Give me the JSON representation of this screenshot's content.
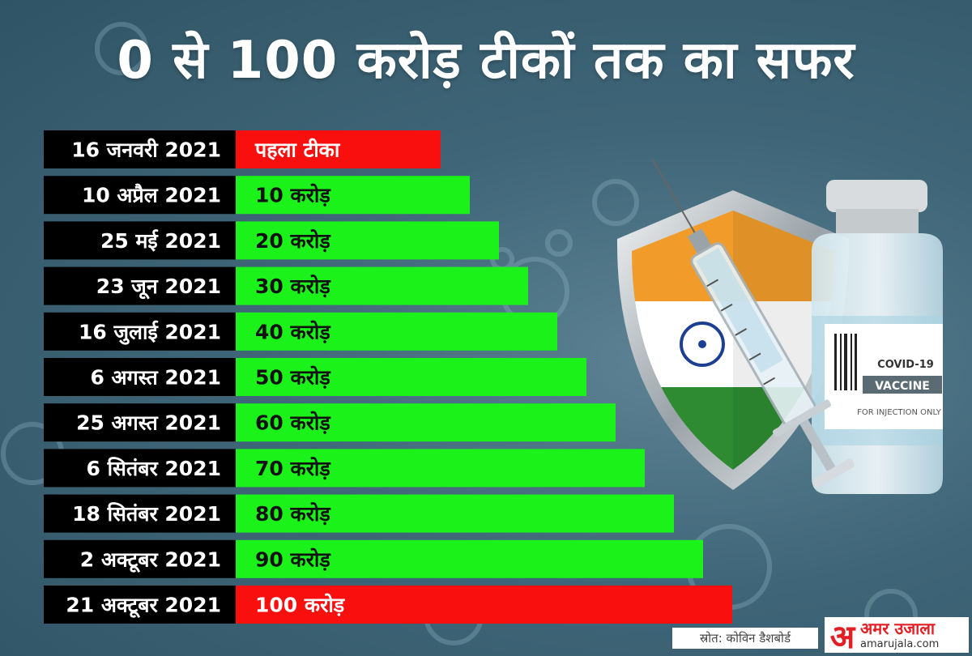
{
  "title": "0 से 100 करोड़ टीकों तक का सफर",
  "source": "स्रोत: कोविन डैशबोर्ड",
  "logo": {
    "mark": "अ",
    "name": "अमर उजाला",
    "site": "amarujala.com"
  },
  "illustration": {
    "label_line1": "COVID-19",
    "label_line2": "VACCINE",
    "label_line3": "FOR INJECTION ONLY"
  },
  "colors": {
    "green": "#1af21a",
    "red": "#fa0f0f",
    "date_bg": "#000000"
  },
  "chart_data": {
    "type": "bar",
    "orientation": "horizontal",
    "categories": [
      "16 जनवरी 2021",
      "10 अप्रैल 2021",
      "25 मई 2021",
      "23 जून 2021",
      "16 जुलाई 2021",
      "6 अगस्त 2021",
      "25 अगस्त 2021",
      "6 सितंबर 2021",
      "18 सितंबर 2021",
      "2 अक्टूबर 2021",
      "21 अक्टूबर 2021"
    ],
    "labels": [
      "पहला टीका",
      "10 करोड़",
      "20 करोड़",
      "30 करोड़",
      "40 करोड़",
      "50 करोड़",
      "60 करोड़",
      "70 करोड़",
      "80 करोड़",
      "90 करोड़",
      "100 करोड़"
    ],
    "values": [
      0,
      10,
      20,
      30,
      40,
      50,
      60,
      70,
      80,
      90,
      100
    ],
    "highlight": [
      true,
      false,
      false,
      false,
      false,
      false,
      false,
      false,
      false,
      false,
      true
    ],
    "title": "0 से 100 करोड़ टीकों तक का सफर",
    "xlabel": "",
    "ylabel": ""
  }
}
